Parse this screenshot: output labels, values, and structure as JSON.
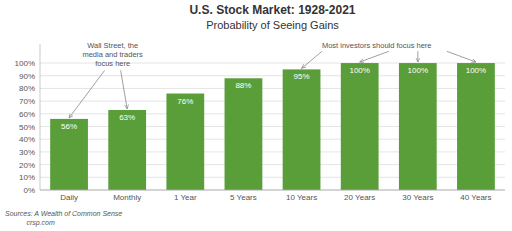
{
  "chart_data": {
    "type": "bar",
    "title": "U.S. Stock Market: 1928-2021",
    "subtitle": "Probability of Seeing Gains",
    "categories": [
      "Daily",
      "Monthly",
      "1 Year",
      "5 Years",
      "10 Years",
      "20 Years",
      "30 Years",
      "40 Years"
    ],
    "values": [
      56,
      63,
      76,
      88,
      95,
      100,
      100,
      100
    ],
    "value_labels": [
      "56%",
      "63%",
      "76%",
      "88%",
      "95%",
      "100%",
      "100%",
      "100%"
    ],
    "data_labels": true,
    "color": "#5a9e3a",
    "ylim": [
      0,
      115
    ],
    "yticks": [
      {
        "value": 0,
        "label": "0%"
      },
      {
        "value": 10,
        "label": "10%"
      },
      {
        "value": 20,
        "label": "20%"
      },
      {
        "value": 30,
        "label": "30%"
      },
      {
        "value": 40,
        "label": "40%"
      },
      {
        "value": 50,
        "label": "50%"
      },
      {
        "value": 60,
        "label": "60%"
      },
      {
        "value": 70,
        "label": "70%"
      },
      {
        "value": 80,
        "label": "80%"
      },
      {
        "value": 90,
        "label": "90%"
      },
      {
        "value": 100,
        "label": "100%"
      }
    ],
    "grid": true,
    "annotations": [
      "Wall Street, the\nmedia and traders\nfocus here",
      "Most investors should focus here"
    ],
    "source": "Sources: A Wealth of Common Sense\n           crsp.com"
  }
}
